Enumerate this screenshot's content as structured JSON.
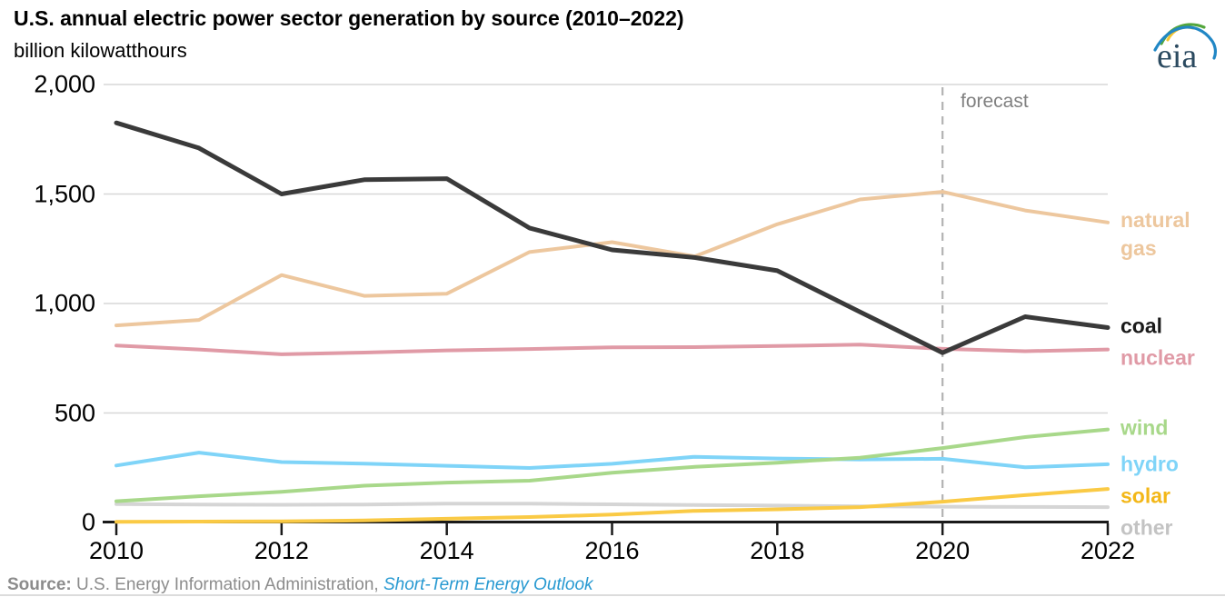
{
  "header": {
    "title": "U.S. annual electric power sector generation by source (2010–2022)",
    "subtitle": "billion kilowatthours"
  },
  "logo": {
    "text": "eia"
  },
  "source": {
    "prefix": "Source:",
    "attribution": " U.S. Energy Information Administration, ",
    "publication": "Short-Term Energy Outlook",
    "link_color": "#2799D1",
    "text_color": "#8C8C8C"
  },
  "chart_data": {
    "type": "line",
    "title": "U.S. annual electric power sector generation by source (2010–2022)",
    "ylabel": "billion kilowatthours",
    "xlabel": "",
    "x": [
      2010,
      2011,
      2012,
      2013,
      2014,
      2015,
      2016,
      2017,
      2018,
      2019,
      2020,
      2021,
      2022
    ],
    "xlim": [
      2010,
      2022
    ],
    "ylim": [
      0,
      2000
    ],
    "xticks": [
      2010,
      2012,
      2014,
      2016,
      2018,
      2020,
      2022
    ],
    "yticks": [
      {
        "value": 0,
        "label": "0"
      },
      {
        "value": 500,
        "label": "500"
      },
      {
        "value": 1000,
        "label": "1,000"
      },
      {
        "value": 1500,
        "label": "1,500"
      },
      {
        "value": 2000,
        "label": "2,000"
      }
    ],
    "grid": "horizontal",
    "legend_position": "right-of-lines",
    "forecast": {
      "x": 2020,
      "label": "forecast"
    },
    "style": {
      "grid_color": "#D7D7D7",
      "axis_color": "#1A1A1A",
      "forecast_line_color": "#B3B3B3",
      "forecast_text_color": "#808080"
    },
    "series": [
      {
        "name": "coal",
        "label": "coal",
        "label_lines": [
          "coal"
        ],
        "color": "#3A3A3A",
        "label_color": "#1A1A1A",
        "values": [
          1825,
          1710,
          1500,
          1565,
          1570,
          1345,
          1245,
          1210,
          1150,
          962,
          775,
          940,
          890
        ]
      },
      {
        "name": "natural gas",
        "label": "natural gas",
        "label_lines": [
          "natural",
          "gas"
        ],
        "color": "#EDC79E",
        "label_color": "#EDC79E",
        "values": [
          900,
          925,
          1130,
          1035,
          1045,
          1235,
          1280,
          1215,
          1362,
          1475,
          1510,
          1425,
          1370
        ]
      },
      {
        "name": "nuclear",
        "label": "nuclear",
        "label_lines": [
          "nuclear"
        ],
        "color": "#E09AA6",
        "label_color": "#E09AA6",
        "values": [
          808,
          790,
          768,
          776,
          786,
          792,
          800,
          801,
          806,
          812,
          793,
          782,
          790
        ]
      },
      {
        "name": "wind",
        "label": "wind",
        "label_lines": [
          "wind"
        ],
        "color": "#A8D88A",
        "label_color": "#A8D88A",
        "values": [
          97,
          120,
          140,
          168,
          182,
          191,
          227,
          254,
          273,
          296,
          340,
          390,
          425
        ]
      },
      {
        "name": "hydro",
        "label": "hydro",
        "label_lines": [
          "hydro"
        ],
        "color": "#7FD4F8",
        "label_color": "#7FD4F8",
        "values": [
          260,
          319,
          276,
          269,
          259,
          249,
          268,
          300,
          292,
          288,
          291,
          252,
          266
        ]
      },
      {
        "name": "solar",
        "label": "solar",
        "label_lines": [
          "solar"
        ],
        "color": "#FACA45",
        "label_color": "#F3B718",
        "values": [
          3,
          4,
          5,
          9,
          17,
          25,
          36,
          53,
          60,
          70,
          95,
          125,
          153
        ]
      },
      {
        "name": "other",
        "label": "other",
        "label_lines": [
          "other"
        ],
        "color": "#D5D5D5",
        "label_color": "#C3C3C3",
        "values": [
          84,
          82,
          81,
          82,
          86,
          86,
          83,
          80,
          77,
          74,
          72,
          71,
          70
        ]
      }
    ]
  }
}
